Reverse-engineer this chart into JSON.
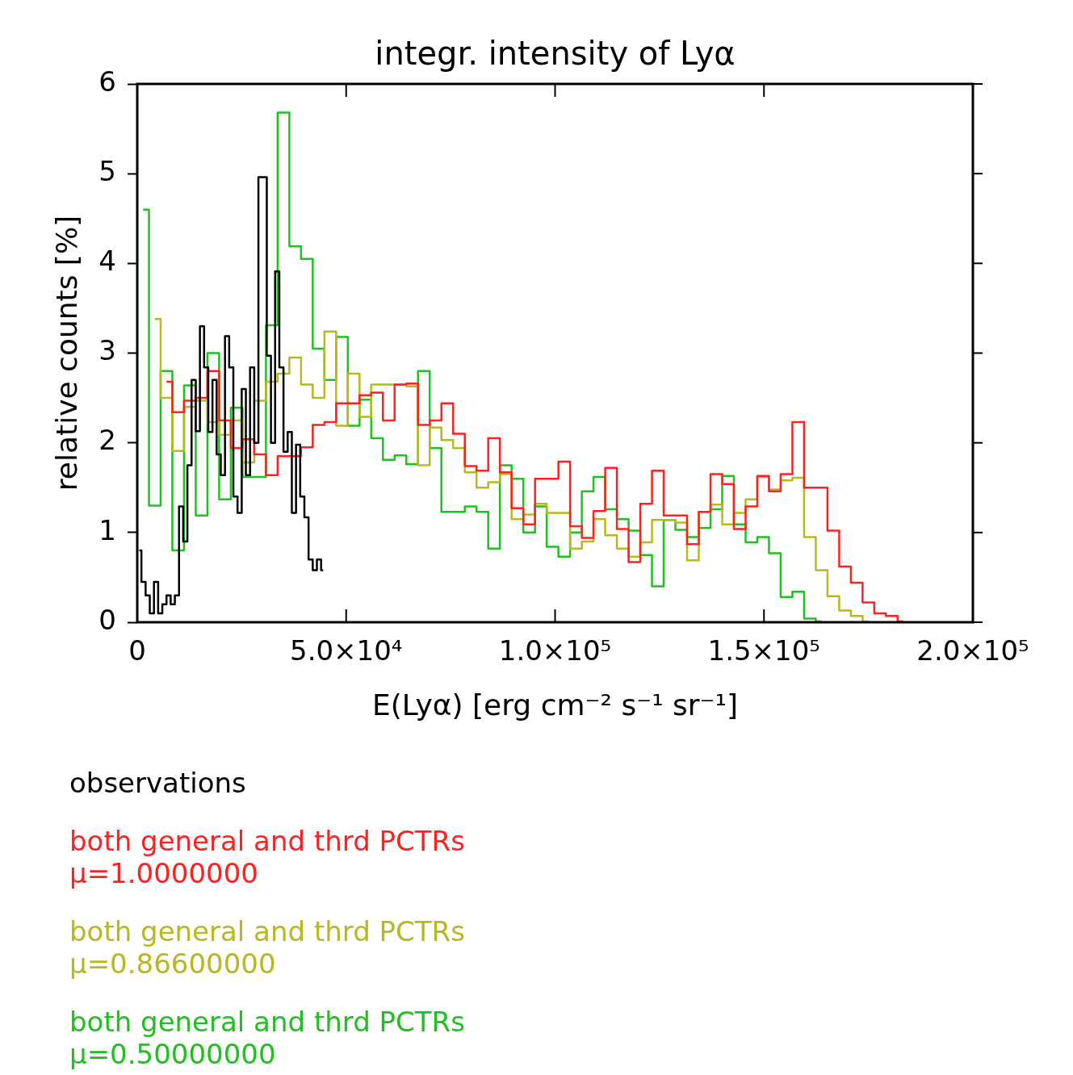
{
  "chart_data": {
    "type": "step",
    "title": "integr. intensity of Lyα",
    "xlabel": "E(Lyα) [erg cm⁻² s⁻¹ sr⁻¹]",
    "ylabel": "relative counts [%]",
    "xlim": [
      0,
      200000
    ],
    "xticks": [
      0,
      {
        "value": 50000,
        "label": "5.0×10⁴"
      },
      {
        "value": 100000,
        "label": "1.0×10⁵"
      },
      {
        "value": 150000,
        "label": "1.5×10⁵"
      },
      {
        "value": 200000,
        "label": "2.0×10⁵"
      }
    ],
    "ylim": [
      0,
      6
    ],
    "yticks": [
      0,
      1,
      2,
      3,
      4,
      5,
      6
    ],
    "grid": false,
    "series": [
      {
        "name": "observations",
        "color": "#000000",
        "x": [
          500,
          1500,
          2500,
          3500,
          4500,
          5500,
          6500,
          7500,
          8500,
          9500,
          10500,
          11500,
          12500,
          13500,
          14500,
          15500,
          16500,
          17500,
          18500,
          19500,
          20500,
          21500,
          22500,
          23500,
          24500,
          25500,
          26500,
          27500,
          28500,
          29500,
          30500,
          31500,
          32500,
          33500,
          34500,
          35500,
          36500,
          37500,
          38500,
          39500,
          40500,
          41500,
          42500,
          43500,
          44500
        ],
        "values": [
          0.8,
          0.45,
          0.3,
          0.1,
          0.45,
          0.1,
          0.2,
          0.3,
          0.2,
          0.3,
          1.29,
          0.9,
          1.75,
          2.7,
          2.13,
          3.3,
          2.84,
          2.12,
          2.7,
          1.87,
          1.64,
          3.19,
          2.84,
          1.4,
          1.22,
          2.6,
          1.64,
          2.84,
          2.0,
          4.96,
          4.96,
          2.97,
          2.0,
          3.91,
          2.84,
          1.9,
          2.12,
          1.22,
          1.98,
          1.4,
          1.17,
          0.7,
          0.58,
          0.7,
          0.58
        ]
      },
      {
        "name": "both general and thrd PCTRs\nμ=1.0000000",
        "color": "#ff2020",
        "x": [
          7000,
          9800,
          12600,
          15400,
          18200,
          21000,
          23800,
          26600,
          29400,
          32200,
          35000,
          37800,
          40600,
          43400,
          46200,
          49000,
          51800,
          54600,
          57400,
          60200,
          63000,
          65800,
          68600,
          71400,
          74200,
          77000,
          79800,
          82600,
          85400,
          88200,
          91000,
          93800,
          96600,
          99400,
          102200,
          105000,
          107800,
          110600,
          113400,
          116200,
          119000,
          121800,
          124600,
          127400,
          130200,
          133000,
          135800,
          138600,
          141400,
          144200,
          147000,
          149800,
          152600,
          155400,
          158200,
          161000,
          163800,
          166600,
          169400,
          172200,
          175000,
          177800,
          180600,
          183400
        ],
        "values": [
          2.68,
          2.34,
          2.47,
          2.5,
          2.8,
          2.25,
          1.94,
          2.04,
          1.87,
          1.64,
          1.85,
          1.85,
          1.95,
          2.2,
          2.23,
          2.44,
          2.44,
          2.53,
          2.56,
          2.25,
          2.65,
          2.66,
          2.2,
          2.25,
          2.44,
          2.1,
          1.74,
          1.69,
          2.05,
          1.67,
          1.27,
          1.09,
          1.6,
          1.6,
          1.79,
          1.07,
          0.94,
          1.24,
          1.72,
          1.04,
          0.67,
          1.32,
          1.69,
          1.19,
          1.19,
          0.87,
          1.23,
          1.65,
          1.54,
          1.04,
          1.29,
          1.63,
          1.46,
          1.65,
          2.23,
          1.5,
          1.5,
          1.02,
          0.62,
          0.44,
          0.22,
          0.1,
          0.07,
          0.01
        ]
      },
      {
        "name": "both general and thrd PCTRs\nμ=0.86600000",
        "color": "#b8b820",
        "x": [
          4200,
          7000,
          9800,
          12600,
          15400,
          18200,
          21000,
          23800,
          26600,
          29400,
          32200,
          35000,
          37800,
          40600,
          43400,
          46200,
          49000,
          51800,
          54600,
          57400,
          60200,
          63000,
          65800,
          68600,
          71400,
          74200,
          77000,
          79800,
          82600,
          85400,
          88200,
          91000,
          93800,
          96600,
          99400,
          102200,
          105000,
          107800,
          110600,
          113400,
          116200,
          119000,
          121800,
          124600,
          127400,
          130200,
          133000,
          135800,
          138600,
          141400,
          144200,
          147000,
          149800,
          152600,
          155400,
          158200,
          161000,
          163800,
          166600,
          169400,
          172200,
          175000
        ],
        "values": [
          3.38,
          2.5,
          1.91,
          2.4,
          2.47,
          2.23,
          2.09,
          2.25,
          1.78,
          2.47,
          2.68,
          2.77,
          2.95,
          2.65,
          2.5,
          3.24,
          2.19,
          2.77,
          2.29,
          2.65,
          2.65,
          2.65,
          2.63,
          1.75,
          2.17,
          2.03,
          1.94,
          1.67,
          1.5,
          1.56,
          1.65,
          1.15,
          1.2,
          1.32,
          1.22,
          1.22,
          0.82,
          0.9,
          1.15,
          0.97,
          0.82,
          0.73,
          0.89,
          1.14,
          1.14,
          1.11,
          0.69,
          1.23,
          1.31,
          1.09,
          1.22,
          1.37,
          1.62,
          1.48,
          1.58,
          1.61,
          0.95,
          0.58,
          0.29,
          0.13,
          0.07,
          0.01
        ]
      },
      {
        "name": "both general and thrd PCTRs\nμ=0.50000000",
        "color": "#20c020",
        "x": [
          1400,
          4200,
          7000,
          9800,
          12600,
          15400,
          18200,
          21000,
          23800,
          26600,
          29400,
          32200,
          35000,
          37800,
          40600,
          43400,
          46200,
          49000,
          51800,
          54600,
          57400,
          60200,
          63000,
          65800,
          68600,
          71400,
          74200,
          77000,
          79800,
          82600,
          85400,
          88200,
          91000,
          93800,
          96600,
          99400,
          102200,
          105000,
          107800,
          110600,
          113400,
          116200,
          119000,
          121800,
          124600,
          127400,
          130200,
          133000,
          135800,
          138600,
          141400,
          144200,
          147000,
          149800,
          152600,
          155400,
          158200,
          161000,
          163800
        ],
        "values": [
          4.6,
          1.3,
          2.8,
          0.8,
          2.64,
          1.19,
          3.0,
          1.37,
          2.39,
          1.62,
          1.62,
          3.31,
          5.68,
          4.19,
          4.05,
          3.05,
          2.7,
          3.18,
          2.19,
          2.48,
          2.05,
          1.81,
          1.86,
          1.76,
          2.8,
          1.94,
          1.23,
          1.23,
          1.29,
          1.23,
          0.82,
          1.75,
          1.6,
          1.0,
          1.29,
          0.84,
          0.73,
          1.0,
          1.46,
          1.62,
          1.26,
          1.15,
          1.02,
          0.75,
          0.4,
          1.14,
          1.03,
          0.95,
          1.05,
          1.26,
          1.63,
          1.09,
          0.89,
          0.95,
          0.77,
          0.28,
          0.34,
          0.04,
          0.01
        ]
      }
    ]
  }
}
